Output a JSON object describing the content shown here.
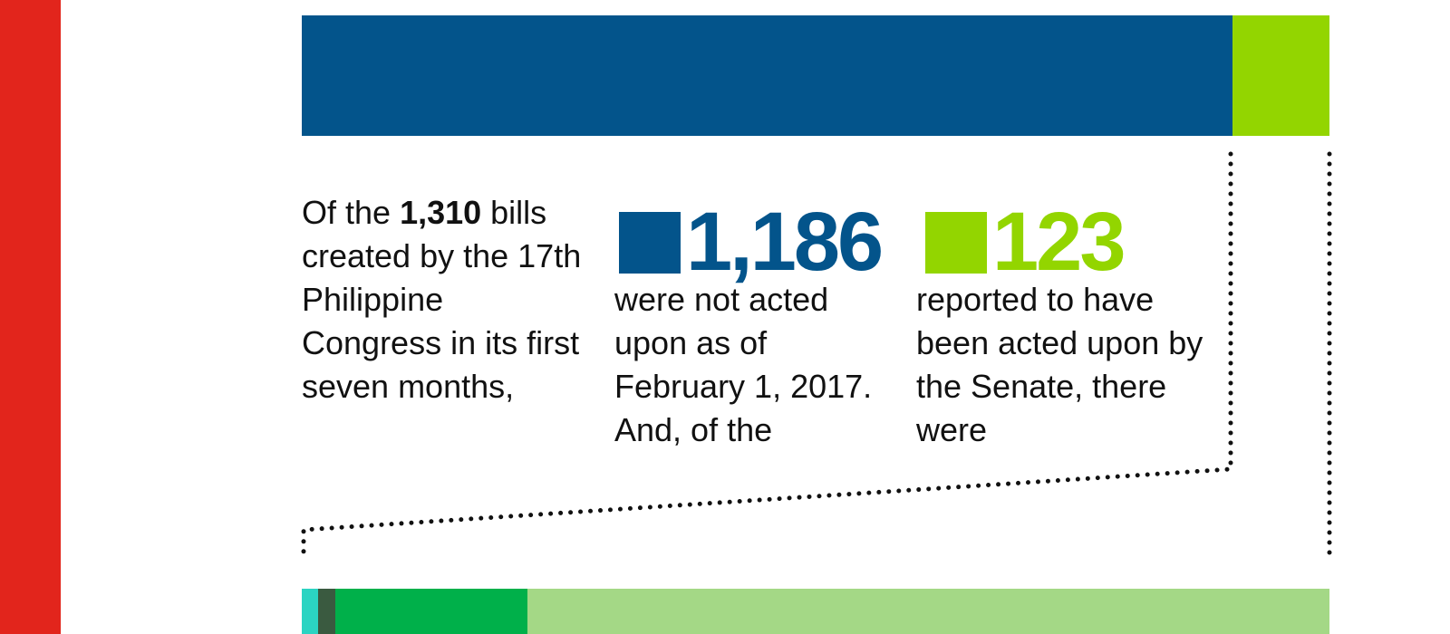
{
  "colors": {
    "accent_red": "#e2251c",
    "not_acted": "#03548b",
    "acted": "#93d500",
    "bottom_teal": "#2bd4c2",
    "bottom_darkgreen": "#3a5a40",
    "bottom_green": "#00b04a",
    "bottom_lightgreen": "#a4d886"
  },
  "text": {
    "lead_pre": "Of the ",
    "lead_total": "1,310",
    "lead_post": " bills created by the 17th Philippine Congress in its first seven months,",
    "not_acted_value": "1,186",
    "not_acted_text": "were not acted upon as of February 1, 2017. And, of the",
    "acted_value": "123",
    "acted_text": "reported to have been acted upon by the Senate, there were"
  },
  "chart_data": [
    {
      "type": "bar",
      "orientation": "horizontal-stacked",
      "total": 1310,
      "series": [
        {
          "name": "were not acted upon as of February 1, 2017",
          "value": 1186,
          "color": "#03548b"
        },
        {
          "name": "reported to have been acted upon by the Senate",
          "value": 123,
          "color": "#93d500"
        }
      ]
    },
    {
      "type": "bar",
      "orientation": "horizontal-stacked",
      "total": 123,
      "series": [
        {
          "value": 2,
          "color": "#2bd4c2"
        },
        {
          "value": 2,
          "color": "#3a5a40"
        },
        {
          "value": 23,
          "color": "#00b04a"
        },
        {
          "value": 96,
          "color": "#a4d886"
        }
      ]
    }
  ]
}
